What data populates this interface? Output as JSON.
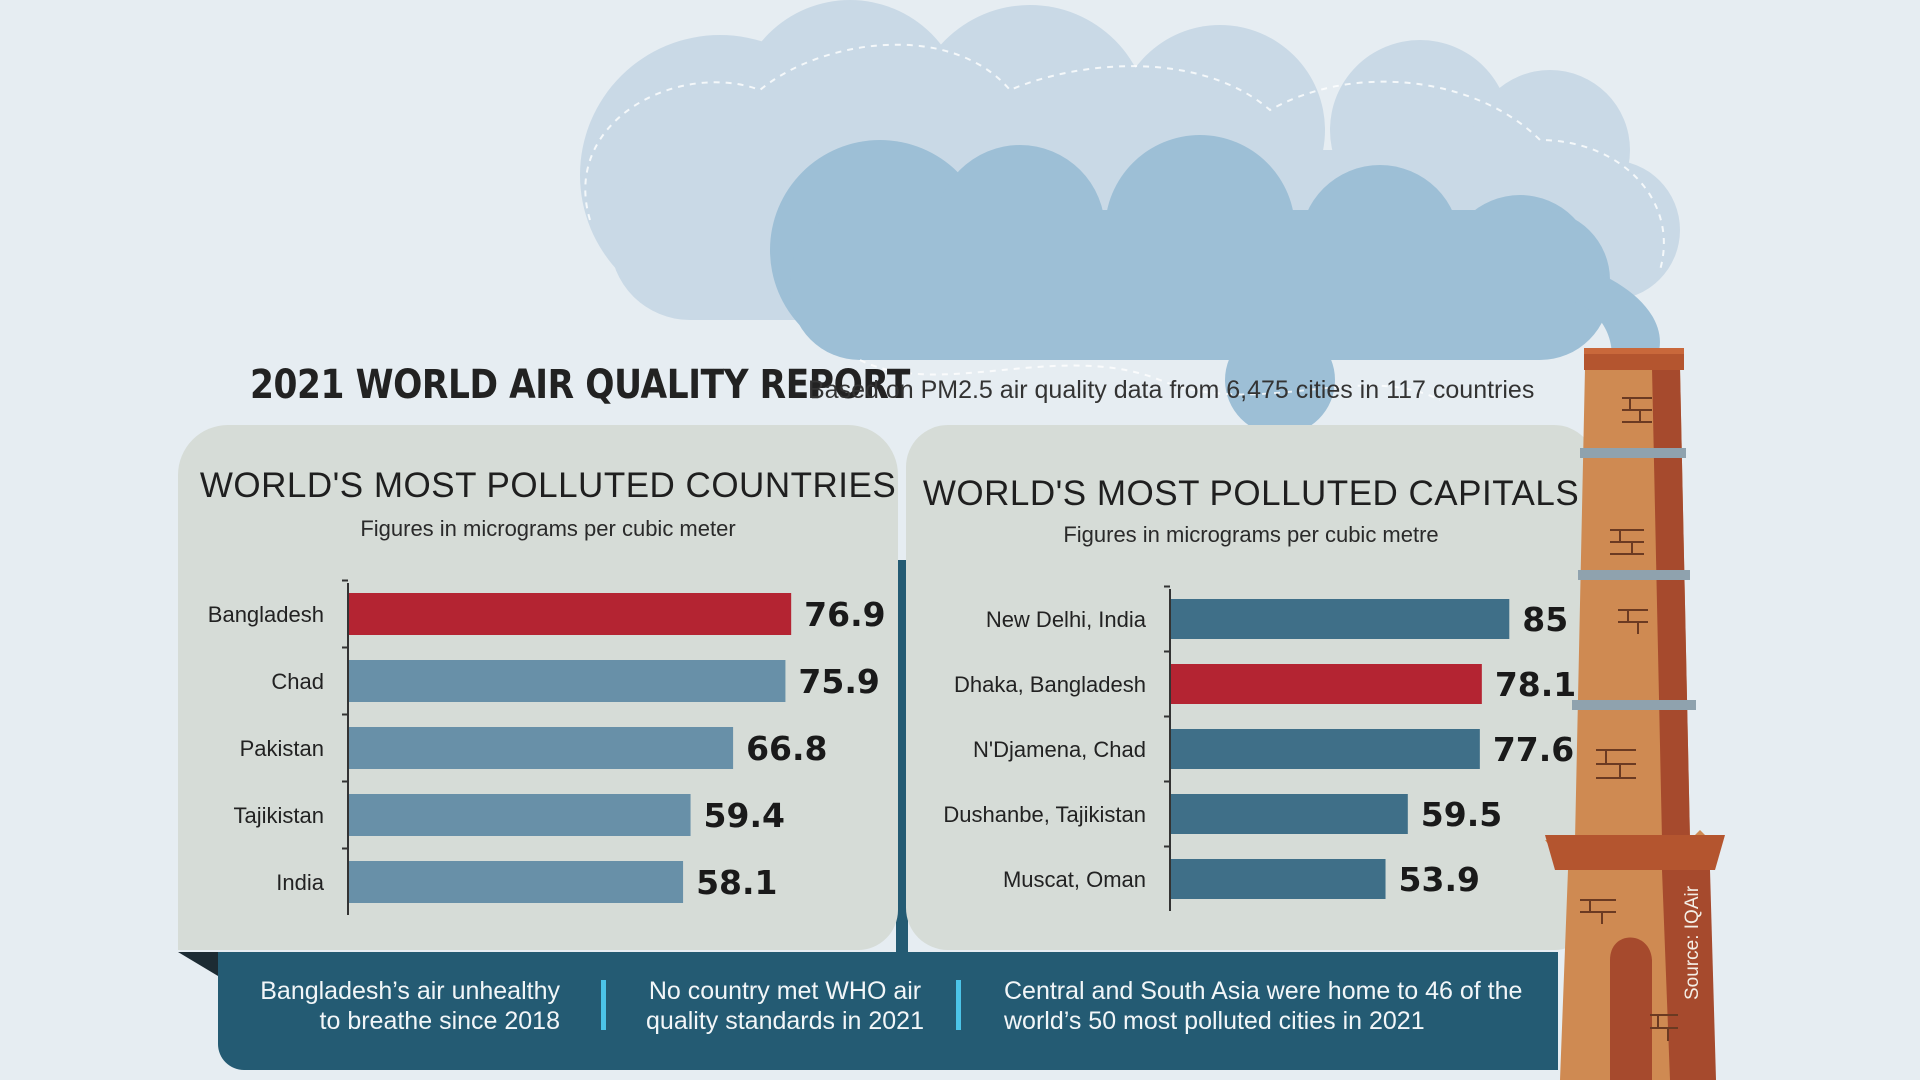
{
  "header": {
    "title": "2021 WORLD AIR QUALITY REPORT",
    "subtitle": "Based on PM2.5 air quality data from 6,475 cities in 117 countries"
  },
  "colors": {
    "highlight": "#b42432",
    "countries_bar": "#6890a8",
    "capitals_bar": "#3f6f88",
    "band": "#245b73",
    "panel": "#d6dcd7",
    "separator": "#4cc4e8"
  },
  "chart_data": [
    {
      "type": "bar",
      "orientation": "horizontal",
      "title": "WORLD'S MOST POLLUTED COUNTRIES",
      "subtitle": "Figures in micrograms per cubic meter",
      "categories": [
        "Bangladesh",
        "Chad",
        "Pakistan",
        "Tajikistan",
        "India"
      ],
      "values": [
        76.9,
        75.9,
        66.8,
        59.4,
        58.1
      ],
      "value_labels": [
        "76.9",
        "75.9",
        "66.8",
        "59.4",
        "58.1"
      ],
      "highlight": "Bangladesh",
      "xlim": [
        0,
        100
      ],
      "grid": false
    },
    {
      "type": "bar",
      "orientation": "horizontal",
      "title": "WORLD'S MOST POLLUTED CAPITALS",
      "subtitle": "Figures in micrograms per cubic metre",
      "categories": [
        "New Delhi, India",
        "Dhaka, Bangladesh",
        "N'Djamena, Chad",
        "Dushanbe, Tajikistan",
        "Muscat, Oman"
      ],
      "values": [
        85,
        78.1,
        77.6,
        59.5,
        53.9
      ],
      "value_labels": [
        "85",
        "78.1",
        "77.6",
        "59.5",
        "53.9"
      ],
      "highlight": "Dhaka, Bangladesh",
      "xlim": [
        0,
        100
      ],
      "grid": false
    }
  ],
  "facts": [
    "Bangladesh’s air unhealthy\nto breathe since 2018",
    "No country met WHO air\nquality standards in 2021",
    "Central and South Asia were home to 46 of the\nworld’s 50 most polluted cities in 2021"
  ],
  "source": "Source: IQAir"
}
